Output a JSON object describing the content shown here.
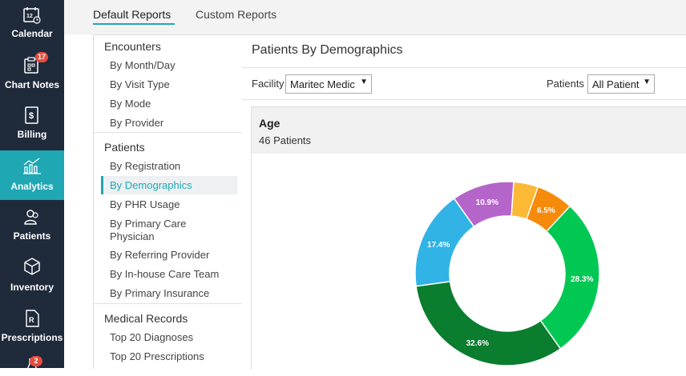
{
  "nav": {
    "items": [
      {
        "label": "Calendar",
        "icon": "calendar-icon"
      },
      {
        "label": "Chart Notes",
        "icon": "chart-notes-icon",
        "badge": "17"
      },
      {
        "label": "Billing",
        "icon": "billing-icon"
      },
      {
        "label": "Analytics",
        "icon": "analytics-icon",
        "active": true
      },
      {
        "label": "Patients",
        "icon": "patients-icon"
      },
      {
        "label": "Inventory",
        "icon": "inventory-icon"
      },
      {
        "label": "Prescriptions",
        "icon": "prescriptions-icon"
      },
      {
        "label": "",
        "icon": "lab-icon",
        "badge": "2"
      }
    ],
    "calendar_day": "12"
  },
  "tabs": {
    "default": "Default Reports",
    "custom": "Custom Reports"
  },
  "menu": {
    "encounters": {
      "title": "Encounters",
      "items": [
        "By Month/Day",
        "By Visit Type",
        "By Mode",
        "By Provider"
      ]
    },
    "patients": {
      "title": "Patients",
      "items": [
        "By Registration",
        "By Demographics",
        "By PHR Usage",
        "By Primary Care Physician",
        "By Referring Provider",
        "By In-house Care Team",
        "By Primary Insurance"
      ]
    },
    "medical_records": {
      "title": "Medical Records",
      "items": [
        "Top 20 Diagnoses",
        "Top 20 Prescriptions"
      ]
    }
  },
  "main": {
    "title": "Patients By Demographics",
    "facility_label": "Facility",
    "facility_value": "Maritec Medic",
    "patients_label": "Patients",
    "patients_value": "All Patient"
  },
  "card": {
    "title": "Age",
    "subtitle": "46 Patients"
  },
  "chart_data": {
    "type": "pie",
    "donut": true,
    "slices": [
      {
        "value": 4.3,
        "label": "",
        "color": "#fbb936"
      },
      {
        "value": 6.5,
        "label": "6.5%",
        "color": "#f68a0a"
      },
      {
        "value": 28.3,
        "label": "28.3%",
        "color": "#00c853"
      },
      {
        "value": 32.6,
        "label": "32.6%",
        "color": "#0a7d2e"
      },
      {
        "value": 17.4,
        "label": "17.4%",
        "color": "#31b3e6"
      },
      {
        "value": 10.9,
        "label": "10.9%",
        "color": "#b565c9"
      }
    ]
  },
  "colors": {
    "accent": "#1fa7b4",
    "nav_bg": "#1f2a3b",
    "badge": "#e74c3c"
  }
}
